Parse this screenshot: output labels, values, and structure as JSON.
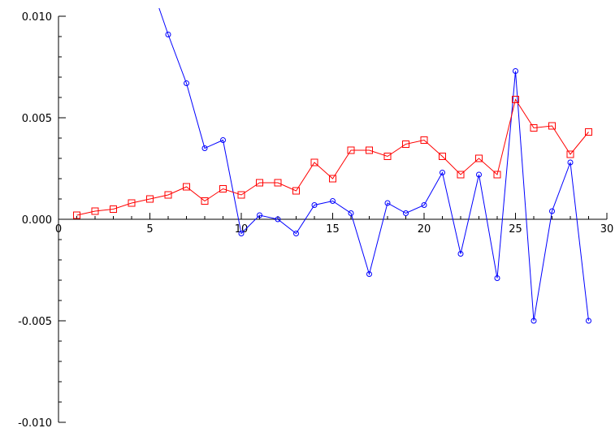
{
  "chart_data": {
    "type": "line",
    "title": "",
    "xlabel": "",
    "ylabel": "",
    "xlim": [
      0,
      30
    ],
    "ylim": [
      -0.01,
      0.01
    ],
    "grid": false,
    "legend": "none",
    "x_major_ticks": [
      0,
      5,
      10,
      15,
      20,
      25,
      30
    ],
    "x_tick_labels": [
      "0",
      "5",
      "10",
      "15",
      "20",
      "25",
      "30"
    ],
    "x_minor_step": 1,
    "y_major_ticks": [
      0.01,
      0.005,
      0.0,
      -0.005,
      -0.01
    ],
    "y_tick_labels": [
      "0.010",
      "0.005",
      "0.000",
      "-0.005",
      "-0.010"
    ],
    "y_minor_step": 0.001,
    "series": [
      {
        "color": "#0000ff",
        "marker": "circle",
        "x": [
          6,
          7,
          8,
          9,
          10,
          11,
          12,
          13,
          14,
          15,
          16,
          17,
          18,
          19,
          20,
          21,
          22,
          23,
          24,
          25,
          26,
          27,
          28,
          29
        ],
        "values": [
          0.0091,
          0.0067,
          0.0035,
          0.0039,
          -0.0007,
          0.0002,
          0.0,
          -0.0007,
          0.0007,
          0.0009,
          0.0003,
          -0.0027,
          0.0008,
          0.0003,
          0.0007,
          0.0023,
          -0.0017,
          0.0022,
          -0.0029,
          0.0073,
          -0.005,
          0.0004,
          0.0028,
          -0.005
        ],
        "lead_in": [
          [
            5.5,
            0.0104
          ]
        ]
      },
      {
        "color": "#ff0000",
        "marker": "square",
        "x": [
          1,
          2,
          3,
          4,
          5,
          6,
          7,
          8,
          9,
          10,
          11,
          12,
          13,
          14,
          15,
          16,
          17,
          18,
          19,
          20,
          21,
          22,
          23,
          24,
          25,
          26,
          27,
          28,
          29
        ],
        "values": [
          0.0002,
          0.0004,
          0.0005,
          0.0008,
          0.001,
          0.0012,
          0.0016,
          0.0009,
          0.0015,
          0.0012,
          0.0018,
          0.0018,
          0.0014,
          0.0028,
          0.002,
          0.0034,
          0.0034,
          0.0031,
          0.0037,
          0.0039,
          0.0031,
          0.0022,
          0.003,
          0.0022,
          0.0059,
          0.0045,
          0.0046,
          0.0032,
          0.0043
        ]
      }
    ]
  }
}
